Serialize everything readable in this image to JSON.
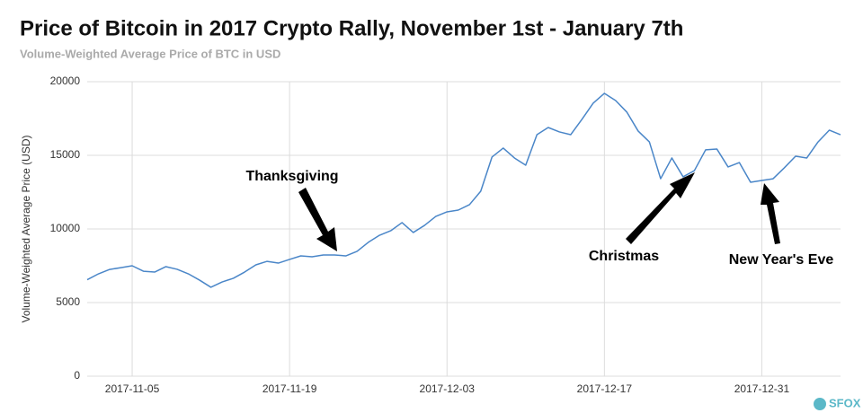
{
  "chart_data": {
    "type": "line",
    "title": "Price of Bitcoin in 2017 Crypto Rally, November 1st - January 7th",
    "subtitle": "Volume-Weighted Average Price of BTC in USD",
    "y_label": "Volume-Weighted Average Price (USD)",
    "color": "#4a86c8",
    "grid": true,
    "x": [
      "2017-11-01",
      "2017-11-02",
      "2017-11-03",
      "2017-11-04",
      "2017-11-05",
      "2017-11-06",
      "2017-11-07",
      "2017-11-08",
      "2017-11-09",
      "2017-11-10",
      "2017-11-11",
      "2017-11-12",
      "2017-11-13",
      "2017-11-14",
      "2017-11-15",
      "2017-11-16",
      "2017-11-17",
      "2017-11-18",
      "2017-11-19",
      "2017-11-20",
      "2017-11-21",
      "2017-11-22",
      "2017-11-23",
      "2017-11-24",
      "2017-11-25",
      "2017-11-26",
      "2017-11-27",
      "2017-11-28",
      "2017-11-29",
      "2017-11-30",
      "2017-12-01",
      "2017-12-02",
      "2017-12-03",
      "2017-12-04",
      "2017-12-05",
      "2017-12-06",
      "2017-12-07",
      "2017-12-08",
      "2017-12-09",
      "2017-12-10",
      "2017-12-11",
      "2017-12-12",
      "2017-12-13",
      "2017-12-14",
      "2017-12-15",
      "2017-12-16",
      "2017-12-17",
      "2017-12-18",
      "2017-12-19",
      "2017-12-20",
      "2017-12-21",
      "2017-12-22",
      "2017-12-23",
      "2017-12-24",
      "2017-12-25",
      "2017-12-26",
      "2017-12-27",
      "2017-12-28",
      "2017-12-29",
      "2017-12-30",
      "2017-12-31",
      "2018-01-01",
      "2018-01-02",
      "2018-01-03",
      "2018-01-04",
      "2018-01-05",
      "2018-01-06",
      "2018-01-07"
    ],
    "values": [
      6550,
      6950,
      7250,
      7370,
      7500,
      7130,
      7070,
      7440,
      7260,
      6950,
      6520,
      6040,
      6400,
      6650,
      7070,
      7560,
      7800,
      7680,
      7930,
      8170,
      8110,
      8230,
      8230,
      8170,
      8480,
      9090,
      9570,
      9880,
      10430,
      9760,
      10240,
      10850,
      11160,
      11280,
      11650,
      12560,
      14880,
      15490,
      14820,
      14330,
      16400,
      16890,
      16590,
      16400,
      17440,
      18540,
      19210,
      18720,
      17930,
      16650,
      15910,
      13410,
      14820,
      13540,
      13960,
      15370,
      15430,
      14210,
      14510,
      13170,
      13290,
      13410,
      14150,
      14940,
      14820,
      15910,
      16710,
      16400
    ],
    "xlim": [
      "2017-11-01",
      "2018-01-07"
    ],
    "xticks": [
      "2017-11-05",
      "2017-11-19",
      "2017-12-03",
      "2017-12-17",
      "2017-12-31"
    ],
    "ylim": [
      0,
      20000
    ],
    "yticks": [
      0,
      5000,
      10000,
      15000,
      20000
    ],
    "annotations": [
      "Thanksgiving",
      "Christmas",
      "New Year's Eve"
    ],
    "logo": "SFOX"
  }
}
